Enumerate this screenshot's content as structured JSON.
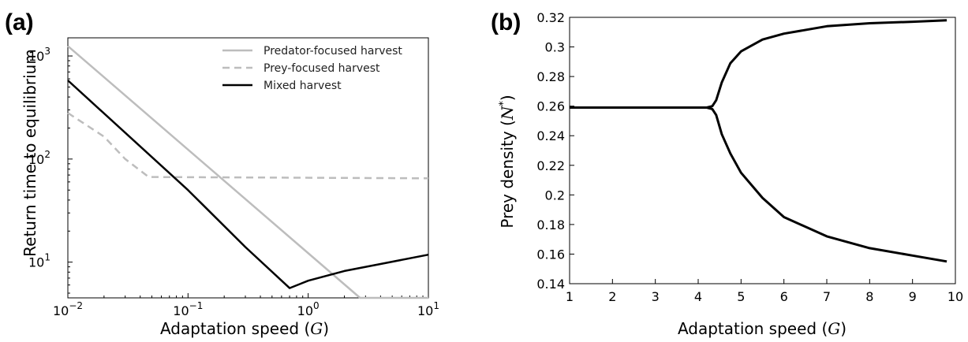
{
  "figure": {
    "label_a": "(a)",
    "label_b": "(b)"
  },
  "chart_data": [
    {
      "id": "a",
      "type": "line",
      "xscale": "log",
      "yscale": "log",
      "xlim": [
        0.01,
        10
      ],
      "ylim": [
        4.5,
        1500
      ],
      "xlabel": "Adaptation speed (G)",
      "ylabel": "Return time to equilibrium",
      "xticks": [
        {
          "value": 0.01,
          "base": "10",
          "exp": "−2"
        },
        {
          "value": 0.1,
          "base": "10",
          "exp": "−1"
        },
        {
          "value": 1,
          "base": "10",
          "exp": "0"
        },
        {
          "value": 10,
          "base": "10",
          "exp": "1"
        }
      ],
      "yticks": [
        {
          "value": 10,
          "base": "10",
          "exp": "1"
        },
        {
          "value": 100,
          "base": "10",
          "exp": "2"
        },
        {
          "value": 1000,
          "base": "10",
          "exp": "3"
        }
      ],
      "legend_position": "top-right",
      "series": [
        {
          "name": "Predator-focused harvest",
          "color": "#bdbdbd",
          "dash": "solid",
          "points": [
            [
              0.01,
              1250
            ],
            [
              2.7,
              4.5
            ],
            [
              10,
              4.5
            ]
          ]
        },
        {
          "name": "Prey-focused harvest",
          "color": "#bdbdbd",
          "dash": "dashed",
          "points": [
            [
              0.01,
              280
            ],
            [
              0.02,
              165
            ],
            [
              0.03,
              100
            ],
            [
              0.047,
              67
            ],
            [
              10,
              65
            ]
          ]
        },
        {
          "name": "Mixed harvest",
          "color": "#000000",
          "dash": "solid",
          "points": [
            [
              0.01,
              580
            ],
            [
              0.1,
              50
            ],
            [
              0.3,
              14
            ],
            [
              0.7,
              5.6
            ],
            [
              1,
              6.6
            ],
            [
              2,
              8.2
            ],
            [
              4,
              9.6
            ],
            [
              10,
              11.8
            ]
          ]
        }
      ]
    },
    {
      "id": "b",
      "type": "line",
      "xlim": [
        1,
        10
      ],
      "ylim": [
        0.14,
        0.32
      ],
      "xlabel": "Adaptation speed (G)",
      "ylabel": "Prey density (N*)",
      "xticks": [
        "1",
        "2",
        "3",
        "4",
        "5",
        "6",
        "7",
        "8",
        "9",
        "10"
      ],
      "yticks": [
        "0.14",
        "0.16",
        "0.18",
        "0.2",
        "0.22",
        "0.24",
        "0.26",
        "0.28",
        "0.3",
        "0.32"
      ],
      "series": [
        {
          "color": "#000000",
          "points": [
            [
              1,
              0.259
            ],
            [
              4.2,
              0.259
            ],
            [
              4.33,
              0.26
            ],
            [
              4.42,
              0.264
            ],
            [
              4.55,
              0.276
            ],
            [
              4.75,
              0.289
            ],
            [
              5,
              0.297
            ],
            [
              5.5,
              0.305
            ],
            [
              6,
              0.309
            ],
            [
              7,
              0.314
            ],
            [
              8,
              0.316
            ],
            [
              9,
              0.317
            ],
            [
              9.8,
              0.318
            ]
          ]
        },
        {
          "color": "#000000",
          "points": [
            [
              1,
              0.259
            ],
            [
              4.2,
              0.259
            ],
            [
              4.33,
              0.258
            ],
            [
              4.42,
              0.254
            ],
            [
              4.55,
              0.241
            ],
            [
              4.75,
              0.228
            ],
            [
              5,
              0.215
            ],
            [
              5.5,
              0.198
            ],
            [
              6,
              0.185
            ],
            [
              7,
              0.172
            ],
            [
              8,
              0.164
            ],
            [
              9,
              0.159
            ],
            [
              9.8,
              0.155
            ]
          ]
        }
      ]
    }
  ]
}
